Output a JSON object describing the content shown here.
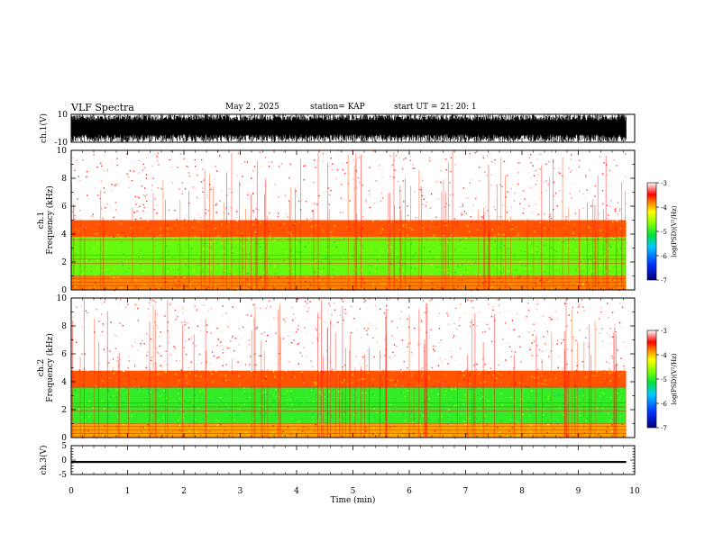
{
  "header": {
    "title": "VLF Spectra",
    "date": "May 2 , 2025",
    "station": "station= KAP",
    "start": "start UT = 21: 20: 1"
  },
  "chart_data": [
    {
      "type": "line",
      "ylabel": "ch.1(V)",
      "ylim": [
        -10,
        10
      ],
      "yticks": [
        "10",
        "-10"
      ],
      "xlim": [
        0,
        10
      ],
      "description_series": "dense black waveform oscillating between about -10 and 10 V from 0 to ~9.85 min"
    },
    {
      "type": "heatmap",
      "ylabel_lines": [
        "ch.1",
        "Frequency (kHz)"
      ],
      "ylim": [
        0,
        10
      ],
      "yticks": [
        "0",
        "2",
        "4",
        "6",
        "8",
        "10"
      ],
      "xlim": [
        0,
        10
      ],
      "data_end_min": 9.85,
      "bands": [
        {
          "from_khz": 0,
          "to_khz": 1,
          "log_psd": -3.8
        },
        {
          "from_khz": 1,
          "to_khz": 3.8,
          "log_psd": -4.8
        },
        {
          "from_khz": 3.8,
          "to_khz": 5,
          "log_psd": -3.7
        },
        {
          "from_khz": 5,
          "to_khz": 10,
          "log_psd": -3.0
        }
      ],
      "colorbar": {
        "label": "log(PSD)(V²/Hz)",
        "ticks": [
          "-3",
          "-4",
          "-5",
          "-6",
          "-7"
        ],
        "range": [
          -7,
          -3
        ]
      }
    },
    {
      "type": "heatmap",
      "ylabel_lines": [
        "ch.2",
        "Frequency (kHz)"
      ],
      "ylim": [
        0,
        10
      ],
      "yticks": [
        "0",
        "2",
        "4",
        "6",
        "8",
        "10"
      ],
      "xlim": [
        0,
        10
      ],
      "data_end_min": 9.85,
      "bands": [
        {
          "from_khz": 0,
          "to_khz": 1,
          "log_psd": -3.9
        },
        {
          "from_khz": 1,
          "to_khz": 3.6,
          "log_psd": -5.0
        },
        {
          "from_khz": 3.6,
          "to_khz": 4.8,
          "log_psd": -3.7
        },
        {
          "from_khz": 4.8,
          "to_khz": 10,
          "log_psd": -3.0
        }
      ],
      "colorbar": {
        "label": "log(PSD)(V²/Hz)",
        "ticks": [
          "-3",
          "-4",
          "-5",
          "-6",
          "-7"
        ],
        "range": [
          -7,
          -3
        ]
      }
    },
    {
      "type": "line",
      "ylabel": "ch.3(V)",
      "ylim": [
        -5,
        5
      ],
      "yticks": [
        "5",
        "0",
        "-5"
      ],
      "xlim": [
        0,
        10
      ],
      "xlabel": "Time (min)",
      "xticks": [
        "0",
        "1",
        "2",
        "3",
        "4",
        "5",
        "6",
        "7",
        "8",
        "9",
        "10"
      ],
      "band_v": [
        -1.0,
        -0.3
      ]
    }
  ],
  "colors": {
    "waveform": "#000000",
    "axis": "#000000"
  }
}
